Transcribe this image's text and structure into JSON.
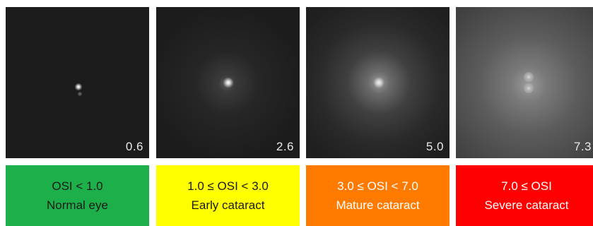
{
  "panels": [
    {
      "value": "0.6",
      "range": "OSI < 1.0",
      "category": "Normal eye",
      "color": "#1db04a",
      "text_color": "#1a1a1a"
    },
    {
      "value": "2.6",
      "range": "1.0 ≤ OSI  < 3.0",
      "category": "Early cataract",
      "color": "#ffff00",
      "text_color": "#1a1a1a"
    },
    {
      "value": "5.0",
      "range": "3.0 ≤ OSI  < 7.0",
      "category": "Mature cataract",
      "color": "#ff7b00",
      "text_color": "#ffffff"
    },
    {
      "value": "7.3",
      "range": "7.0 ≤ OSI",
      "category": "Severe cataract",
      "color": "#ff0000",
      "text_color": "#ffffff"
    }
  ]
}
